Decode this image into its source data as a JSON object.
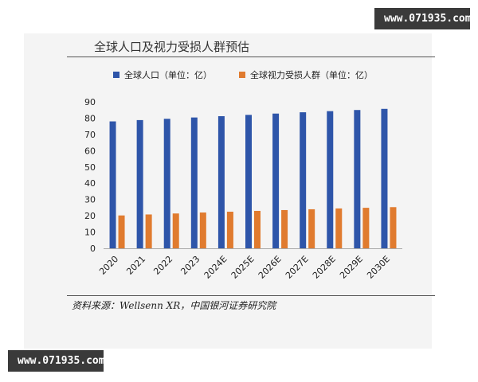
{
  "watermark": "www.071935.com",
  "chart_data": {
    "type": "bar",
    "title": "全球人口及视力受损人群预估",
    "categories": [
      "2020",
      "2021",
      "2022",
      "2023",
      "2024E",
      "2025E",
      "2026E",
      "2027E",
      "2028E",
      "2029E",
      "2030E"
    ],
    "series": [
      {
        "name": "全球人口（单位：亿）",
        "color": "#2e55a9",
        "values": [
          78,
          78.8,
          79.6,
          80.4,
          81.2,
          82,
          82.8,
          83.6,
          84.3,
          85,
          85.7
        ]
      },
      {
        "name": "全球视力受损人群（单位：亿）",
        "color": "#e07b2f",
        "values": [
          20.2,
          20.8,
          21.4,
          22,
          22.5,
          23,
          23.5,
          24,
          24.5,
          24.9,
          25.3
        ]
      }
    ],
    "yticks": [
      "0",
      "10",
      "20",
      "30",
      "40",
      "50",
      "60",
      "70",
      "80",
      "90"
    ],
    "ylim": [
      0,
      90
    ],
    "grid": false,
    "legend": "top",
    "source": "资料来源：Wellsenn XR，中国银河证券研究院"
  }
}
